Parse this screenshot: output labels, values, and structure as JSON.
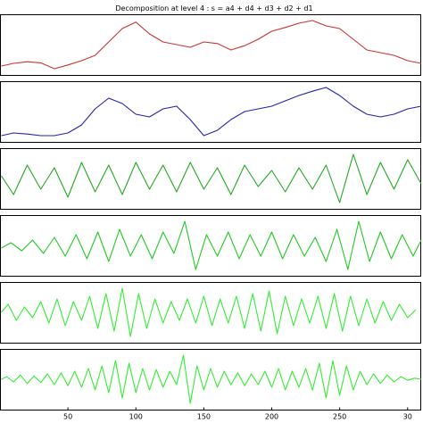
{
  "title": "Decomposition at level 4 : s = a4 + d4 + d3 + d2 + d1",
  "x_ticks": [
    "50",
    "100",
    "150",
    "200",
    "250",
    "30"
  ],
  "chart_data": [
    {
      "type": "line",
      "panel": "s",
      "color": "#cc3333",
      "x": [
        1,
        10,
        20,
        30,
        40,
        50,
        60,
        70,
        80,
        90,
        100,
        110,
        120,
        130,
        140,
        150,
        160,
        170,
        180,
        190,
        200,
        210,
        220,
        230,
        240,
        250,
        260,
        270,
        280,
        290,
        300,
        310
      ],
      "y": [
        0.1,
        0.15,
        0.18,
        0.16,
        0.05,
        0.12,
        0.2,
        0.3,
        0.55,
        0.8,
        0.92,
        0.7,
        0.55,
        0.5,
        0.45,
        0.55,
        0.52,
        0.4,
        0.48,
        0.6,
        0.75,
        0.82,
        0.9,
        0.95,
        0.85,
        0.8,
        0.6,
        0.4,
        0.35,
        0.3,
        0.2,
        0.15
      ],
      "xlim": [
        0,
        310
      ],
      "ylim": [
        0,
        1
      ]
    },
    {
      "type": "line",
      "panel": "a4",
      "color": "#2222aa",
      "x": [
        1,
        10,
        20,
        30,
        40,
        50,
        60,
        70,
        80,
        90,
        100,
        110,
        120,
        130,
        140,
        150,
        160,
        170,
        180,
        190,
        200,
        210,
        220,
        230,
        240,
        250,
        260,
        270,
        280,
        290,
        300,
        310
      ],
      "y": [
        0.05,
        0.1,
        0.08,
        0.05,
        0.05,
        0.1,
        0.25,
        0.55,
        0.75,
        0.65,
        0.45,
        0.4,
        0.55,
        0.6,
        0.35,
        0.05,
        0.15,
        0.35,
        0.5,
        0.55,
        0.6,
        0.7,
        0.8,
        0.88,
        0.95,
        0.8,
        0.6,
        0.45,
        0.4,
        0.45,
        0.55,
        0.6
      ],
      "xlim": [
        0,
        310
      ],
      "ylim": [
        0,
        1
      ]
    },
    {
      "type": "line",
      "panel": "d4",
      "color": "#22aa22",
      "x": [
        1,
        10,
        20,
        30,
        40,
        50,
        60,
        70,
        80,
        90,
        100,
        110,
        120,
        130,
        140,
        150,
        160,
        170,
        180,
        190,
        200,
        210,
        220,
        230,
        240,
        250,
        260,
        270,
        280,
        290,
        300,
        310
      ],
      "y": [
        0.55,
        0.2,
        0.75,
        0.3,
        0.7,
        0.15,
        0.8,
        0.25,
        0.75,
        0.2,
        0.8,
        0.3,
        0.75,
        0.25,
        0.8,
        0.3,
        0.7,
        0.2,
        0.75,
        0.35,
        0.65,
        0.25,
        0.7,
        0.3,
        0.75,
        0.05,
        0.95,
        0.2,
        0.8,
        0.3,
        0.85,
        0.4
      ],
      "xlim": [
        0,
        310
      ],
      "ylim": [
        0,
        1
      ]
    },
    {
      "type": "line",
      "panel": "d3",
      "color": "#22cc22",
      "x": [
        1,
        8,
        16,
        24,
        32,
        40,
        48,
        56,
        64,
        72,
        80,
        88,
        96,
        104,
        112,
        120,
        128,
        136,
        144,
        152,
        160,
        168,
        176,
        184,
        192,
        200,
        208,
        216,
        224,
        232,
        240,
        248,
        256,
        264,
        272,
        280,
        288,
        296,
        304,
        310
      ],
      "y": [
        0.45,
        0.55,
        0.4,
        0.6,
        0.35,
        0.65,
        0.3,
        0.7,
        0.25,
        0.75,
        0.2,
        0.8,
        0.3,
        0.7,
        0.25,
        0.75,
        0.35,
        0.95,
        0.05,
        0.7,
        0.3,
        0.75,
        0.25,
        0.7,
        0.3,
        0.75,
        0.25,
        0.7,
        0.3,
        0.65,
        0.2,
        0.8,
        0.05,
        0.95,
        0.2,
        0.75,
        0.25,
        0.7,
        0.3,
        0.6
      ],
      "xlim": [
        0,
        310
      ],
      "ylim": [
        0,
        1
      ]
    },
    {
      "type": "line",
      "panel": "d2",
      "color": "#33ee33",
      "x": [
        1,
        6,
        12,
        18,
        24,
        30,
        36,
        42,
        48,
        54,
        60,
        66,
        72,
        78,
        84,
        90,
        96,
        102,
        108,
        114,
        120,
        126,
        132,
        138,
        144,
        150,
        156,
        162,
        168,
        174,
        180,
        186,
        192,
        198,
        204,
        210,
        216,
        222,
        228,
        234,
        240,
        246,
        252,
        258,
        264,
        270,
        276,
        282,
        288,
        294,
        300,
        306
      ],
      "y": [
        0.5,
        0.65,
        0.35,
        0.6,
        0.4,
        0.7,
        0.3,
        0.75,
        0.25,
        0.7,
        0.35,
        0.8,
        0.2,
        0.85,
        0.15,
        0.95,
        0.05,
        0.85,
        0.2,
        0.75,
        0.3,
        0.7,
        0.35,
        0.75,
        0.3,
        0.8,
        0.25,
        0.75,
        0.3,
        0.8,
        0.2,
        0.85,
        0.15,
        0.9,
        0.1,
        0.8,
        0.25,
        0.75,
        0.3,
        0.8,
        0.2,
        0.85,
        0.15,
        0.8,
        0.25,
        0.75,
        0.3,
        0.7,
        0.35,
        0.65,
        0.4,
        0.55
      ],
      "xlim": [
        0,
        310
      ],
      "ylim": [
        0,
        1
      ]
    },
    {
      "type": "line",
      "panel": "d1",
      "color": "#33ee33",
      "x": [
        1,
        5,
        10,
        15,
        20,
        25,
        30,
        35,
        40,
        45,
        50,
        55,
        60,
        65,
        70,
        75,
        80,
        85,
        90,
        95,
        100,
        105,
        110,
        115,
        120,
        125,
        130,
        135,
        140,
        145,
        150,
        155,
        160,
        165,
        170,
        175,
        180,
        185,
        190,
        195,
        200,
        205,
        210,
        215,
        220,
        225,
        230,
        235,
        240,
        245,
        250,
        255,
        260,
        265,
        270,
        275,
        280,
        285,
        290,
        295,
        300,
        305,
        310
      ],
      "y": [
        0.5,
        0.55,
        0.45,
        0.58,
        0.42,
        0.56,
        0.44,
        0.6,
        0.4,
        0.62,
        0.38,
        0.65,
        0.35,
        0.7,
        0.3,
        0.75,
        0.25,
        0.85,
        0.15,
        0.8,
        0.25,
        0.7,
        0.3,
        0.68,
        0.35,
        0.65,
        0.4,
        0.95,
        0.05,
        0.75,
        0.3,
        0.7,
        0.35,
        0.65,
        0.4,
        0.62,
        0.38,
        0.6,
        0.4,
        0.65,
        0.35,
        0.7,
        0.3,
        0.65,
        0.35,
        0.7,
        0.3,
        0.8,
        0.15,
        0.85,
        0.2,
        0.75,
        0.3,
        0.65,
        0.4,
        0.6,
        0.42,
        0.58,
        0.45,
        0.55,
        0.48,
        0.52,
        0.5
      ],
      "xlim": [
        0,
        310
      ],
      "ylim": [
        0,
        1
      ]
    }
  ]
}
